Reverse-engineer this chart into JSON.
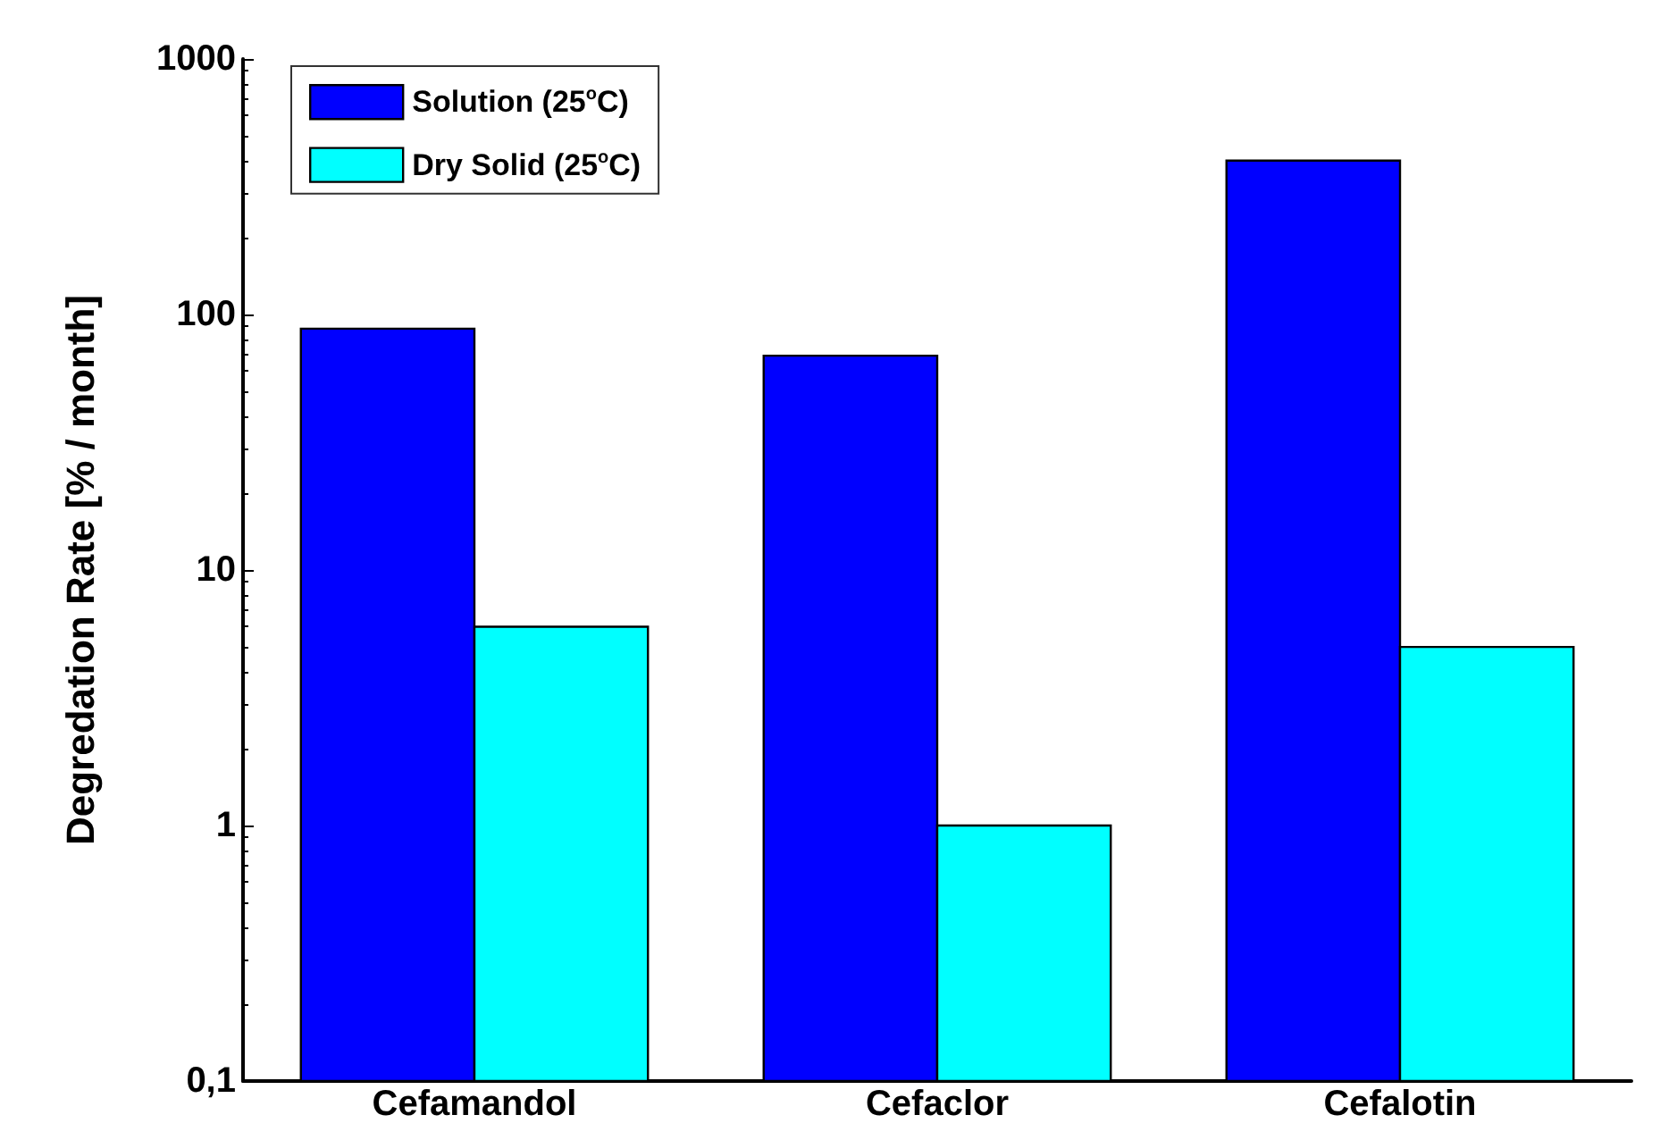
{
  "chart_data": {
    "type": "bar",
    "ylabel": "Degredation Rate [% / month]",
    "categories": [
      "Cefamandol",
      "Cefaclor",
      "Cefalotin"
    ],
    "series": [
      {
        "name": "Solution (25$^{o}$C)",
        "color": "#0000ff",
        "values": [
          88,
          69,
          400
        ]
      },
      {
        "name": "Dry Solid (25$^{o}$C)",
        "color": "#00ffff",
        "values": [
          6,
          1,
          5
        ]
      }
    ],
    "log": "y",
    "ylim": [
      0.1,
      1000
    ],
    "yticks": [
      {
        "value": 0.1,
        "label": "0,1"
      },
      1,
      10,
      100,
      1000
    ],
    "grid": false,
    "legend": "top left"
  }
}
